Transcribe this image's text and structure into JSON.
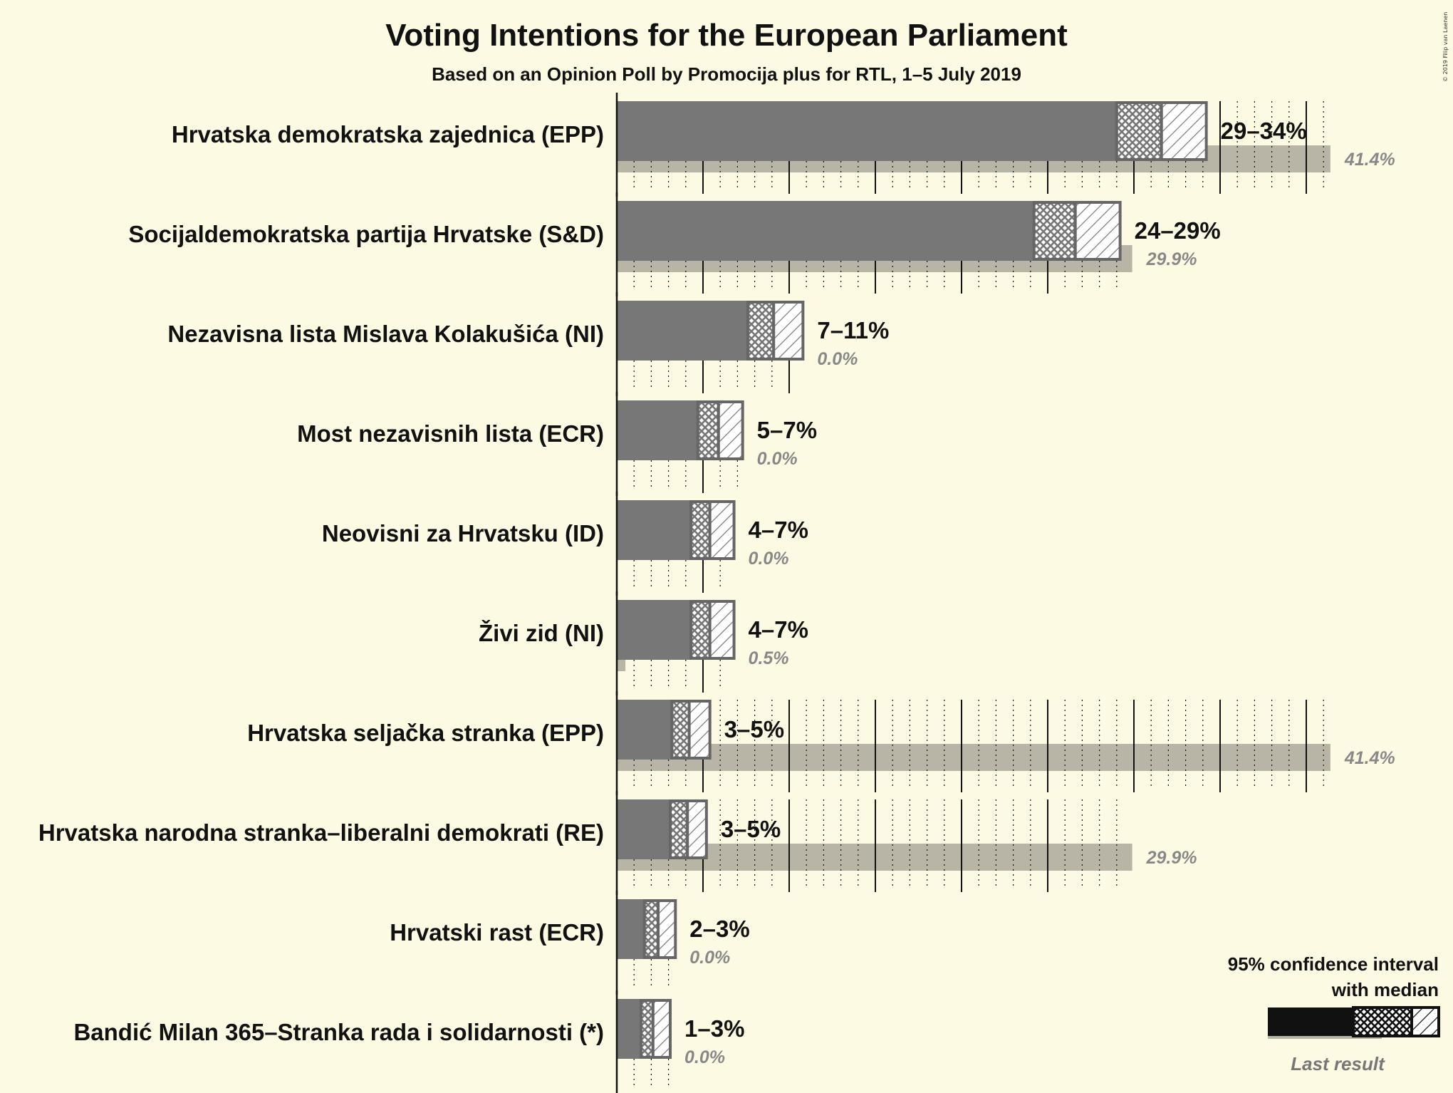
{
  "chart_data": {
    "type": "bar",
    "title": "Voting Intentions for the European Parliament",
    "subtitle": "Based on an Opinion Poll by Promocija plus for RTL, 1–5 July 2019",
    "copyright": "© 2019 Filip van Laenen",
    "xlabel": "",
    "ylabel": "",
    "xlim": [
      0,
      42
    ],
    "legend": {
      "title_line1": "95% confidence interval",
      "title_line2": "with median",
      "last_result": "Last result",
      "placement": "bottom-right"
    },
    "colors": {
      "background": "#fdfae4",
      "bar": "#777777",
      "bar_border": "#666666",
      "last_result": "#b8b4a6",
      "legend_bar": "#111111",
      "text": "#111111",
      "muted_text": "#888888"
    },
    "series": [
      {
        "name": "95% confidence interval",
        "role": "interval"
      },
      {
        "name": "Last result",
        "role": "last"
      }
    ],
    "parties": [
      {
        "name": "Hrvatska demokratska zajednica (EPP)",
        "low": 29.0,
        "median": 31.6,
        "high": 34.2,
        "range_label": "29–34%",
        "last": 41.4,
        "last_label": "41.4%"
      },
      {
        "name": "Socijaldemokratska partija Hrvatske (S&D)",
        "low": 24.2,
        "median": 26.6,
        "high": 29.2,
        "range_label": "24–29%",
        "last": 29.9,
        "last_label": "29.9%"
      },
      {
        "name": "Nezavisna lista Mislava Kolakušića (NI)",
        "low": 7.6,
        "median": 9.1,
        "high": 10.8,
        "range_label": "7–11%",
        "last": 0.0,
        "last_label": "0.0%"
      },
      {
        "name": "Most nezavisnih lista (ECR)",
        "low": 4.7,
        "median": 5.9,
        "high": 7.3,
        "range_label": "5–7%",
        "last": 0.0,
        "last_label": "0.0%"
      },
      {
        "name": "Neovisni za Hrvatsku (ID)",
        "low": 4.3,
        "median": 5.4,
        "high": 6.8,
        "range_label": "4–7%",
        "last": 0.0,
        "last_label": "0.0%"
      },
      {
        "name": "Živi zid (NI)",
        "low": 4.3,
        "median": 5.4,
        "high": 6.8,
        "range_label": "4–7%",
        "last": 0.5,
        "last_label": "0.5%"
      },
      {
        "name": "Hrvatska seljačka stranka (EPP)",
        "low": 3.2,
        "median": 4.2,
        "high": 5.4,
        "range_label": "3–5%",
        "last": 41.4,
        "last_label": "41.4%"
      },
      {
        "name": "Hrvatska narodna stranka–liberalni demokrati (RE)",
        "low": 3.1,
        "median": 4.1,
        "high": 5.2,
        "range_label": "3–5%",
        "last": 29.9,
        "last_label": "29.9%"
      },
      {
        "name": "Hrvatski rast (ECR)",
        "low": 1.6,
        "median": 2.4,
        "high": 3.4,
        "range_label": "2–3%",
        "last": 0.0,
        "last_label": "0.0%"
      },
      {
        "name": "Bandić Milan 365–Stranka rada i solidarnosti (*)",
        "low": 1.4,
        "median": 2.1,
        "high": 3.1,
        "range_label": "1–3%",
        "last": 0.0,
        "last_label": "0.0%"
      }
    ]
  }
}
